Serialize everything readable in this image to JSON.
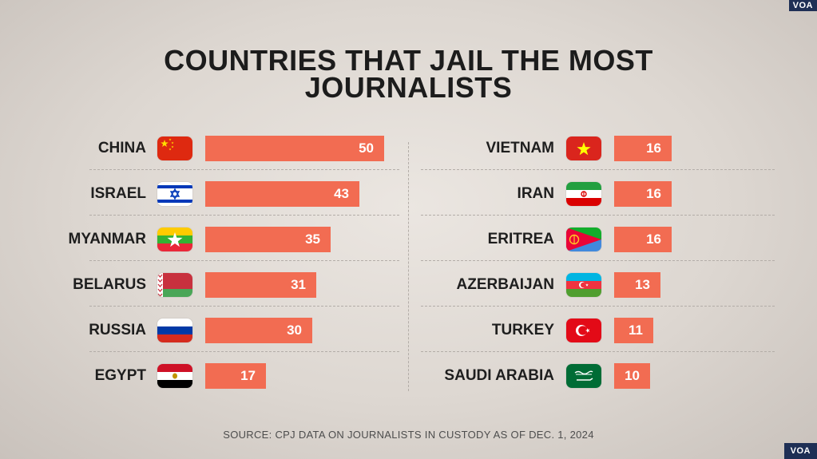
{
  "title_line1": "COUNTRIES THAT JAIL THE MOST",
  "title_line2": "JOURNALISTS",
  "source": "SOURCE: CPJ DATA ON JOURNALISTS IN CUSTODY AS OF DEC. 1, 2024",
  "watermark": "VOA",
  "colors": {
    "bar": "#f26c52",
    "title": "#1c1c1c"
  },
  "chart_data": {
    "type": "bar",
    "title": "COUNTRIES THAT JAIL THE MOST JOURNALISTS",
    "categories": [
      "CHINA",
      "ISRAEL",
      "MYANMAR",
      "BELARUS",
      "RUSSIA",
      "EGYPT",
      "VIETNAM",
      "IRAN",
      "ERITREA",
      "AZERBAIJAN",
      "TURKEY",
      "SAUDI ARABIA"
    ],
    "values": [
      50,
      43,
      35,
      31,
      30,
      17,
      16,
      16,
      16,
      13,
      11,
      10
    ],
    "columns": [
      [
        {
          "country": "CHINA",
          "flag": "china-flag",
          "value": 50
        },
        {
          "country": "ISRAEL",
          "flag": "israel-flag",
          "value": 43
        },
        {
          "country": "MYANMAR",
          "flag": "myanmar-flag",
          "value": 35
        },
        {
          "country": "BELARUS",
          "flag": "belarus-flag",
          "value": 31
        },
        {
          "country": "RUSSIA",
          "flag": "russia-flag",
          "value": 30
        },
        {
          "country": "EGYPT",
          "flag": "egypt-flag",
          "value": 17
        }
      ],
      [
        {
          "country": "VIETNAM",
          "flag": "vietnam-flag",
          "value": 16
        },
        {
          "country": "IRAN",
          "flag": "iran-flag",
          "value": 16
        },
        {
          "country": "ERITREA",
          "flag": "eritrea-flag",
          "value": 16
        },
        {
          "country": "AZERBAIJAN",
          "flag": "azerbaijan-flag",
          "value": 13
        },
        {
          "country": "TURKEY",
          "flag": "turkey-flag",
          "value": 11
        },
        {
          "country": "SAUDI ARABIA",
          "flag": "saudi-arabia-flag",
          "value": 10
        }
      ]
    ],
    "orientation": "horizontal",
    "grid": false
  }
}
